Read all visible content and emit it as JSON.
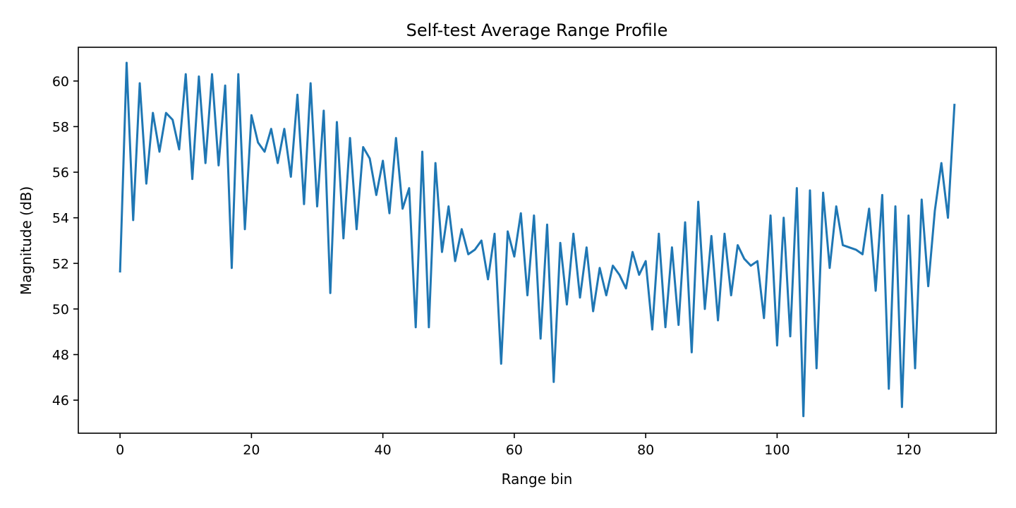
{
  "chart_data": {
    "type": "line",
    "title": "Self-test Average Range Profile",
    "xlabel": "Range bin",
    "ylabel": "Magnitude (dB)",
    "xlim": [
      -6.35,
      133.35
    ],
    "ylim": [
      44.55,
      61.48
    ],
    "xticks": [
      0,
      20,
      40,
      60,
      80,
      100,
      120
    ],
    "yticks": [
      46,
      48,
      50,
      52,
      54,
      56,
      58,
      60
    ],
    "grid": false,
    "line_color": "#1f77b4",
    "series": [
      {
        "x": [
          0,
          1,
          2,
          3,
          4,
          5,
          6,
          7,
          8,
          9,
          10,
          11,
          12,
          13,
          14,
          15,
          16,
          17,
          18,
          19,
          20,
          21,
          22,
          23,
          24,
          25,
          26,
          27,
          28,
          29,
          30,
          31,
          32,
          33,
          34,
          35,
          36,
          37,
          38,
          39,
          40,
          41,
          42,
          43,
          44,
          45,
          46,
          47,
          48,
          49,
          50,
          51,
          52,
          53,
          54,
          55,
          56,
          57,
          58,
          59,
          60,
          61,
          62,
          63,
          64,
          65,
          66,
          67,
          68,
          69,
          70,
          71,
          72,
          73,
          74,
          75,
          76,
          77,
          78,
          79,
          80,
          81,
          82,
          83,
          84,
          85,
          86,
          87,
          88,
          89,
          90,
          91,
          92,
          93,
          94,
          95,
          96,
          97,
          98,
          99,
          100,
          101,
          102,
          103,
          104,
          105,
          106,
          107,
          108,
          109,
          110,
          111,
          112,
          113,
          114,
          115,
          116,
          117,
          118,
          119,
          120,
          121,
          122,
          123,
          124,
          125,
          126,
          127
        ],
        "values": [
          51.6,
          60.8,
          53.9,
          59.9,
          55.5,
          58.6,
          56.9,
          58.6,
          58.3,
          57.0,
          60.3,
          55.7,
          60.2,
          56.4,
          60.3,
          56.3,
          59.8,
          51.8,
          60.3,
          53.5,
          58.5,
          57.3,
          56.9,
          57.9,
          56.4,
          57.9,
          55.8,
          59.4,
          54.6,
          59.9,
          54.5,
          58.7,
          50.7,
          58.2,
          53.1,
          57.5,
          53.5,
          57.1,
          56.6,
          55.0,
          56.5,
          54.2,
          57.5,
          54.4,
          55.3,
          49.2,
          56.9,
          49.2,
          56.4,
          52.5,
          54.5,
          52.1,
          53.5,
          52.4,
          52.6,
          53.0,
          51.3,
          53.3,
          47.6,
          53.4,
          52.3,
          54.2,
          50.6,
          54.1,
          48.7,
          53.7,
          46.8,
          52.9,
          50.2,
          53.3,
          50.5,
          52.7,
          49.9,
          51.8,
          50.6,
          51.9,
          51.5,
          50.9,
          52.5,
          51.5,
          52.1,
          49.1,
          53.3,
          49.2,
          52.7,
          49.3,
          53.8,
          48.1,
          54.7,
          50.0,
          53.2,
          49.5,
          53.3,
          50.6,
          52.8,
          52.2,
          51.9,
          52.1,
          49.6,
          54.1,
          48.4,
          54.0,
          48.8,
          55.3,
          45.3,
          55.2,
          47.4,
          55.1,
          51.8,
          54.5,
          52.8,
          52.7,
          52.6,
          52.4,
          54.4,
          50.8,
          55.0,
          46.5,
          54.5,
          45.7,
          54.1,
          47.4,
          54.8,
          51.0,
          54.3,
          56.4,
          54.0,
          59.0
        ]
      }
    ]
  }
}
